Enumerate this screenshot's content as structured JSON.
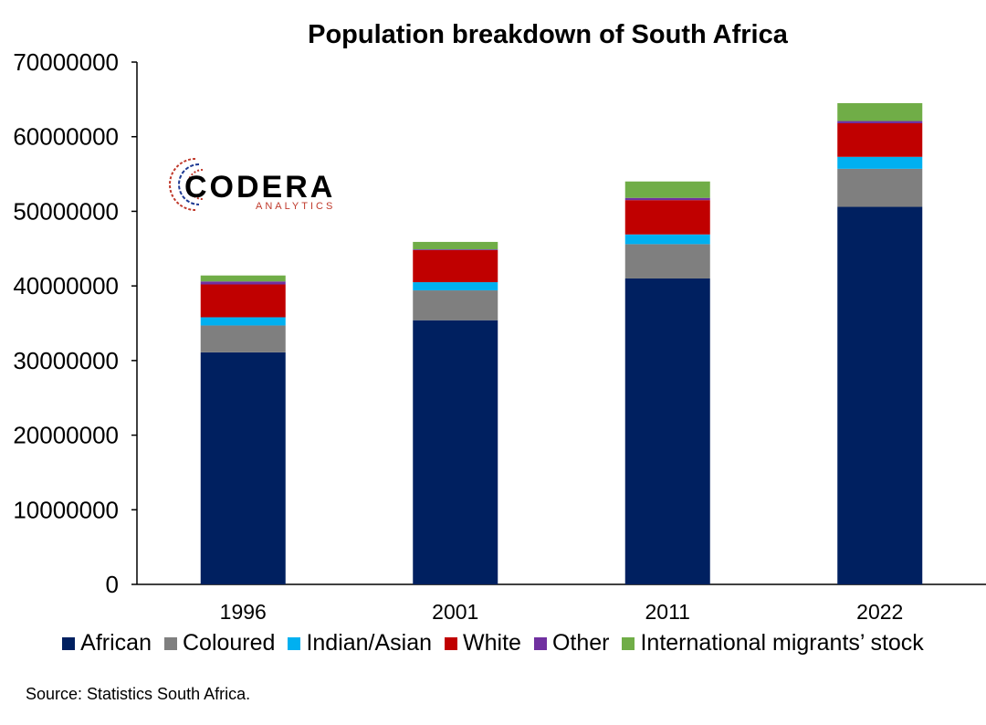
{
  "chart_data": {
    "type": "bar",
    "stacked": true,
    "title": "Population breakdown of South Africa",
    "categories": [
      "1996",
      "2001",
      "2011",
      "2022"
    ],
    "series": [
      {
        "name": "African",
        "color": "#002060",
        "values": [
          31100000,
          35400000,
          41000000,
          50600000
        ]
      },
      {
        "name": "Coloured",
        "color": "#7f7f7f",
        "values": [
          3600000,
          4000000,
          4600000,
          5100000
        ]
      },
      {
        "name": "Indian/Asian",
        "color": "#00b0f0",
        "values": [
          1100000,
          1100000,
          1300000,
          1600000
        ]
      },
      {
        "name": "White",
        "color": "#c00000",
        "values": [
          4400000,
          4300000,
          4600000,
          4500000
        ]
      },
      {
        "name": "Other",
        "color": "#7030a0",
        "values": [
          400000,
          100000,
          300000,
          300000
        ]
      },
      {
        "name": "International migrants’ stock",
        "color": "#70ad47",
        "values": [
          800000,
          1000000,
          2200000,
          2400000
        ]
      }
    ],
    "ylim": [
      0,
      70000000
    ],
    "yticks": [
      0,
      10000000,
      20000000,
      30000000,
      40000000,
      50000000,
      60000000,
      70000000
    ],
    "grid": false,
    "legend": "bottom"
  },
  "logo": {
    "word": "CODERA",
    "sub": "ANALYTICS"
  },
  "source": "Source: Statistics South Africa."
}
